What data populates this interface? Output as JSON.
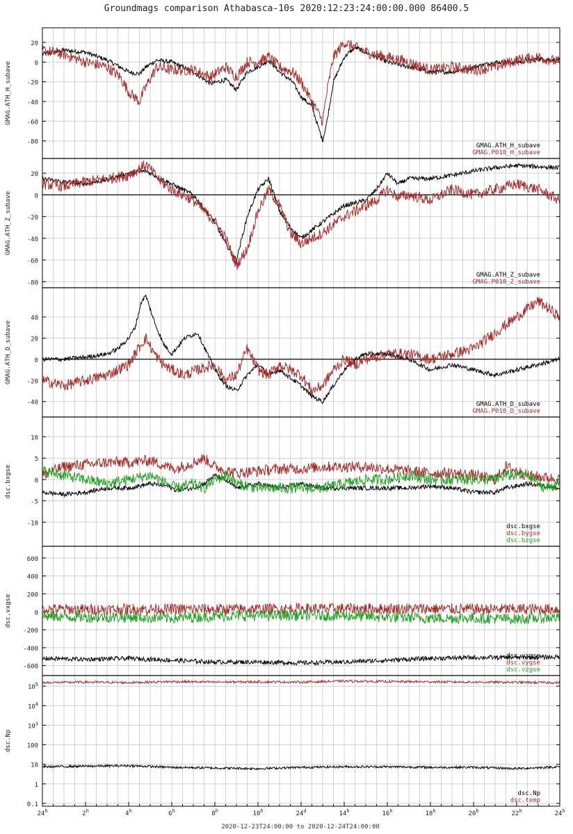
{
  "title": "Groundmags comparison Athabasca-10s 2020:12:23:24:00:00.000 86400.5",
  "time_range_label": "2020-12-23T24:00:00 to 2020-12-24T24:00:00",
  "x_ticks": [
    {
      "hour": 0,
      "base": "24",
      "sup": "h"
    },
    {
      "hour": 2,
      "base": "2",
      "sup": "h"
    },
    {
      "hour": 4,
      "base": "4",
      "sup": "h"
    },
    {
      "hour": 6,
      "base": "6",
      "sup": "h"
    },
    {
      "hour": 8,
      "base": "8",
      "sup": "h"
    },
    {
      "hour": 10,
      "base": "10",
      "sup": "h"
    },
    {
      "hour": 12,
      "base": "24",
      "sup": "d"
    },
    {
      "hour": 14,
      "base": "14",
      "sup": "h"
    },
    {
      "hour": 16,
      "base": "16",
      "sup": "h"
    },
    {
      "hour": 18,
      "base": "18",
      "sup": "h"
    },
    {
      "hour": 20,
      "base": "20",
      "sup": "h"
    },
    {
      "hour": 22,
      "base": "22",
      "sup": "h"
    },
    {
      "hour": 24,
      "base": "24",
      "sup": "h"
    }
  ],
  "colors": {
    "black": "#000000",
    "red": "#a52a2a",
    "green": "#22a022",
    "grid": "#d0d0d0",
    "frame": "#000000"
  },
  "chart_data": [
    {
      "type": "line",
      "ylabel": "GMAG.ATH_H_subave",
      "ylim": [
        -95,
        32
      ],
      "yticks": [
        {
          "v": 20,
          "t": "20"
        },
        {
          "v": 0,
          "t": "0"
        },
        {
          "v": -20,
          "t": "-20"
        },
        {
          "v": -40,
          "t": "-40"
        },
        {
          "v": -60,
          "t": "-60"
        },
        {
          "v": -80,
          "t": "-80"
        }
      ],
      "zero_line": false,
      "x": [
        0,
        1,
        2,
        3,
        3.6,
        4,
        4.5,
        4.8,
        5.3,
        6,
        7,
        7.8,
        8.5,
        9,
        9.5,
        10,
        10.5,
        11,
        11.6,
        12,
        12.5,
        13,
        13.2,
        13.5,
        14,
        14.5,
        15,
        16,
        17,
        18,
        19,
        20,
        21,
        22,
        23,
        24
      ],
      "series": [
        {
          "name": "GMAG.ATH_H_subave",
          "color": "black",
          "y": [
            8,
            12,
            10,
            2,
            -5,
            -10,
            -12,
            -5,
            2,
            0,
            -10,
            -22,
            -18,
            -28,
            -10,
            -5,
            2,
            -10,
            -20,
            -35,
            -45,
            -80,
            -60,
            -20,
            5,
            15,
            10,
            0,
            -5,
            -10,
            -10,
            -5,
            0,
            0,
            3,
            2
          ]
        },
        {
          "name": "GMAG.P010_H_subave",
          "color": "red",
          "y": [
            12,
            8,
            0,
            -5,
            -15,
            -30,
            -40,
            -25,
            -5,
            -8,
            -8,
            -15,
            -5,
            -15,
            0,
            0,
            5,
            -5,
            -10,
            -20,
            -40,
            -60,
            -30,
            5,
            20,
            15,
            10,
            5,
            0,
            -8,
            -5,
            -8,
            -5,
            2,
            5,
            0
          ]
        }
      ]
    },
    {
      "type": "line",
      "ylabel": "GMAG.ATH_Z_subave",
      "ylim": [
        -83,
        31
      ],
      "yticks": [
        {
          "v": 20,
          "t": "20"
        },
        {
          "v": 0,
          "t": "0"
        },
        {
          "v": -20,
          "t": "-20"
        },
        {
          "v": -40,
          "t": "-40"
        },
        {
          "v": -60,
          "t": "-60"
        },
        {
          "v": -80,
          "t": "-80"
        }
      ],
      "zero_line": true,
      "x": [
        0,
        1,
        2,
        3,
        4,
        4.8,
        5.5,
        6,
        7,
        8,
        8.5,
        9,
        9.5,
        10,
        10.5,
        11,
        11.5,
        12,
        13,
        14,
        15,
        15.5,
        16,
        16.5,
        17,
        18,
        19,
        20,
        21,
        22,
        23,
        24
      ],
      "series": [
        {
          "name": "GMAG.ATH_Z_subave",
          "color": "black",
          "y": [
            15,
            12,
            10,
            14,
            20,
            22,
            15,
            10,
            0,
            -25,
            -45,
            -60,
            -20,
            5,
            15,
            -15,
            -30,
            -40,
            -25,
            -10,
            -5,
            5,
            20,
            10,
            15,
            15,
            18,
            22,
            25,
            27,
            26,
            25
          ]
        },
        {
          "name": "GMAG.P010_Z_subave",
          "color": "red",
          "y": [
            10,
            8,
            12,
            15,
            18,
            28,
            12,
            5,
            -5,
            -25,
            -40,
            -65,
            -50,
            -15,
            5,
            -10,
            -35,
            -45,
            -35,
            -20,
            -10,
            -5,
            5,
            -2,
            0,
            -5,
            5,
            0,
            5,
            10,
            5,
            -5
          ]
        }
      ]
    },
    {
      "type": "line",
      "ylabel": "GMAG.ATH_D_subave",
      "ylim": [
        -52,
        65
      ],
      "yticks": [
        {
          "v": 40,
          "t": "40"
        },
        {
          "v": 20,
          "t": "20"
        },
        {
          "v": 0,
          "t": "0"
        },
        {
          "v": -20,
          "t": "-20"
        },
        {
          "v": -40,
          "t": "-40"
        }
      ],
      "zero_line": true,
      "x": [
        0,
        1,
        2,
        3,
        3.5,
        4,
        4.3,
        4.6,
        4.8,
        5.2,
        5.6,
        6,
        6.6,
        7.2,
        8,
        8.5,
        9,
        9.5,
        10,
        10.5,
        11,
        12,
        12.5,
        13,
        13.5,
        14,
        14.5,
        15,
        16,
        17,
        18,
        19,
        20,
        21,
        22,
        23,
        24
      ],
      "series": [
        {
          "name": "GMAG.ATH_D_subave",
          "color": "black",
          "y": [
            0,
            0,
            2,
            5,
            10,
            20,
            30,
            55,
            60,
            35,
            15,
            5,
            20,
            25,
            -10,
            -25,
            -30,
            -15,
            -5,
            -15,
            -10,
            -25,
            -35,
            -40,
            -25,
            -10,
            0,
            5,
            5,
            0,
            -10,
            -5,
            -10,
            -15,
            -10,
            -5,
            0
          ]
        },
        {
          "name": "GMAG.P010_D_subave",
          "color": "red",
          "y": [
            -20,
            -25,
            -20,
            -15,
            -10,
            -5,
            5,
            15,
            20,
            5,
            -5,
            -10,
            -15,
            -10,
            -5,
            -20,
            -15,
            10,
            -10,
            -15,
            -5,
            -15,
            -30,
            -25,
            -10,
            0,
            -5,
            0,
            5,
            5,
            0,
            5,
            10,
            25,
            40,
            55,
            40
          ]
        }
      ]
    },
    {
      "type": "line",
      "ylabel": "dsc.bxgse",
      "ylim": [
        -15,
        14
      ],
      "yticks": [
        {
          "v": 10,
          "t": "10"
        },
        {
          "v": 5,
          "t": "5"
        },
        {
          "v": 0,
          "t": "0"
        },
        {
          "v": -5,
          "t": "-5"
        },
        {
          "v": -10,
          "t": "-10"
        }
      ],
      "zero_line": false,
      "x": [
        0,
        1,
        2,
        3,
        4,
        5,
        5.8,
        6.2,
        7,
        7.5,
        8,
        8.6,
        9,
        10,
        11,
        12,
        13,
        14,
        15,
        16,
        17,
        18,
        19,
        20,
        21,
        21.5,
        22.5,
        23.3,
        24
      ],
      "series": [
        {
          "name": "dsc.bxgse",
          "color": "black",
          "y": [
            -3,
            -3.5,
            -3,
            -2,
            -2,
            -1,
            -1.5,
            -2.5,
            -2,
            -1,
            1,
            -0.5,
            -2,
            -1,
            -2,
            -1,
            -2,
            -2,
            -2,
            -2,
            -2,
            -1.5,
            -2,
            -3,
            -3,
            -2,
            -1,
            -1.5,
            -2
          ]
        },
        {
          "name": "dsc.bygse",
          "color": "red",
          "y": [
            1,
            3,
            3.5,
            4,
            4,
            4.5,
            3,
            2.5,
            4,
            5,
            3,
            2,
            1.5,
            2,
            2.5,
            2.5,
            3,
            3,
            3,
            2.5,
            2,
            1.5,
            1.5,
            1,
            0,
            3,
            1,
            0.5,
            0
          ]
        },
        {
          "name": "dsc.bzgse",
          "color": "green",
          "y": [
            2,
            1,
            0,
            -1,
            0,
            1,
            -1,
            -2,
            -1,
            -2,
            0,
            1,
            -1,
            -2,
            -2,
            -2,
            -2,
            -1,
            0,
            0,
            1,
            0,
            0,
            0,
            0,
            1,
            1,
            -2,
            -1
          ]
        }
      ]
    },
    {
      "type": "line",
      "ylabel": "dsc.vxgse",
      "ylim": [
        -680,
        700
      ],
      "yticks": [
        {
          "v": 600,
          "t": "600"
        },
        {
          "v": 400,
          "t": "400"
        },
        {
          "v": 200,
          "t": "200"
        },
        {
          "v": 0,
          "t": "0"
        },
        {
          "v": -200,
          "t": "-200"
        },
        {
          "v": -400,
          "t": "-400"
        },
        {
          "v": -600,
          "t": "-600"
        }
      ],
      "zero_line": false,
      "x": [
        0,
        2,
        4,
        6,
        8,
        10,
        12,
        14,
        16,
        18,
        20,
        22,
        24
      ],
      "series": [
        {
          "name": "dsc.vxgse",
          "color": "black",
          "y": [
            -520,
            -530,
            -520,
            -540,
            -560,
            -560,
            -570,
            -560,
            -540,
            -520,
            -510,
            -510,
            -505
          ]
        },
        {
          "name": "dsc.vygse",
          "color": "red",
          "y": [
            30,
            25,
            30,
            30,
            30,
            30,
            35,
            35,
            35,
            35,
            30,
            30,
            30
          ]
        },
        {
          "name": "dsc.vzgse",
          "color": "green",
          "y": [
            -50,
            -60,
            -60,
            -70,
            -50,
            -40,
            -40,
            -45,
            -60,
            -70,
            -70,
            -80,
            -60
          ]
        }
      ]
    },
    {
      "type": "line",
      "ylabel": "dsc.Np",
      "ylog": true,
      "ylim": [
        0.1,
        250000
      ],
      "yticks": [
        {
          "v": 100000,
          "base": "10",
          "sup": "5"
        },
        {
          "v": 10000,
          "base": "10",
          "sup": "4"
        },
        {
          "v": 1000,
          "base": "10",
          "sup": "3"
        },
        {
          "v": 100,
          "base": "100",
          "sup": ""
        },
        {
          "v": 10,
          "base": "10",
          "sup": ""
        },
        {
          "v": 1,
          "base": "1",
          "sup": ""
        },
        {
          "v": 0.1,
          "base": "0.1",
          "sup": ""
        }
      ],
      "zero_line": false,
      "x": [
        0,
        2,
        4,
        6,
        8,
        10,
        12,
        14,
        16,
        18,
        20,
        22,
        24
      ],
      "series": [
        {
          "name": "dsc.Np",
          "color": "black",
          "y": [
            7.5,
            8,
            8.5,
            7,
            6.5,
            6,
            7,
            7.5,
            7.5,
            7,
            7,
            6,
            7.5
          ]
        },
        {
          "name": "dsc.temp",
          "color": "red",
          "y": [
            150000,
            160000,
            150000,
            170000,
            160000,
            165000,
            160000,
            180000,
            170000,
            165000,
            160000,
            155000,
            150000
          ]
        }
      ]
    }
  ]
}
